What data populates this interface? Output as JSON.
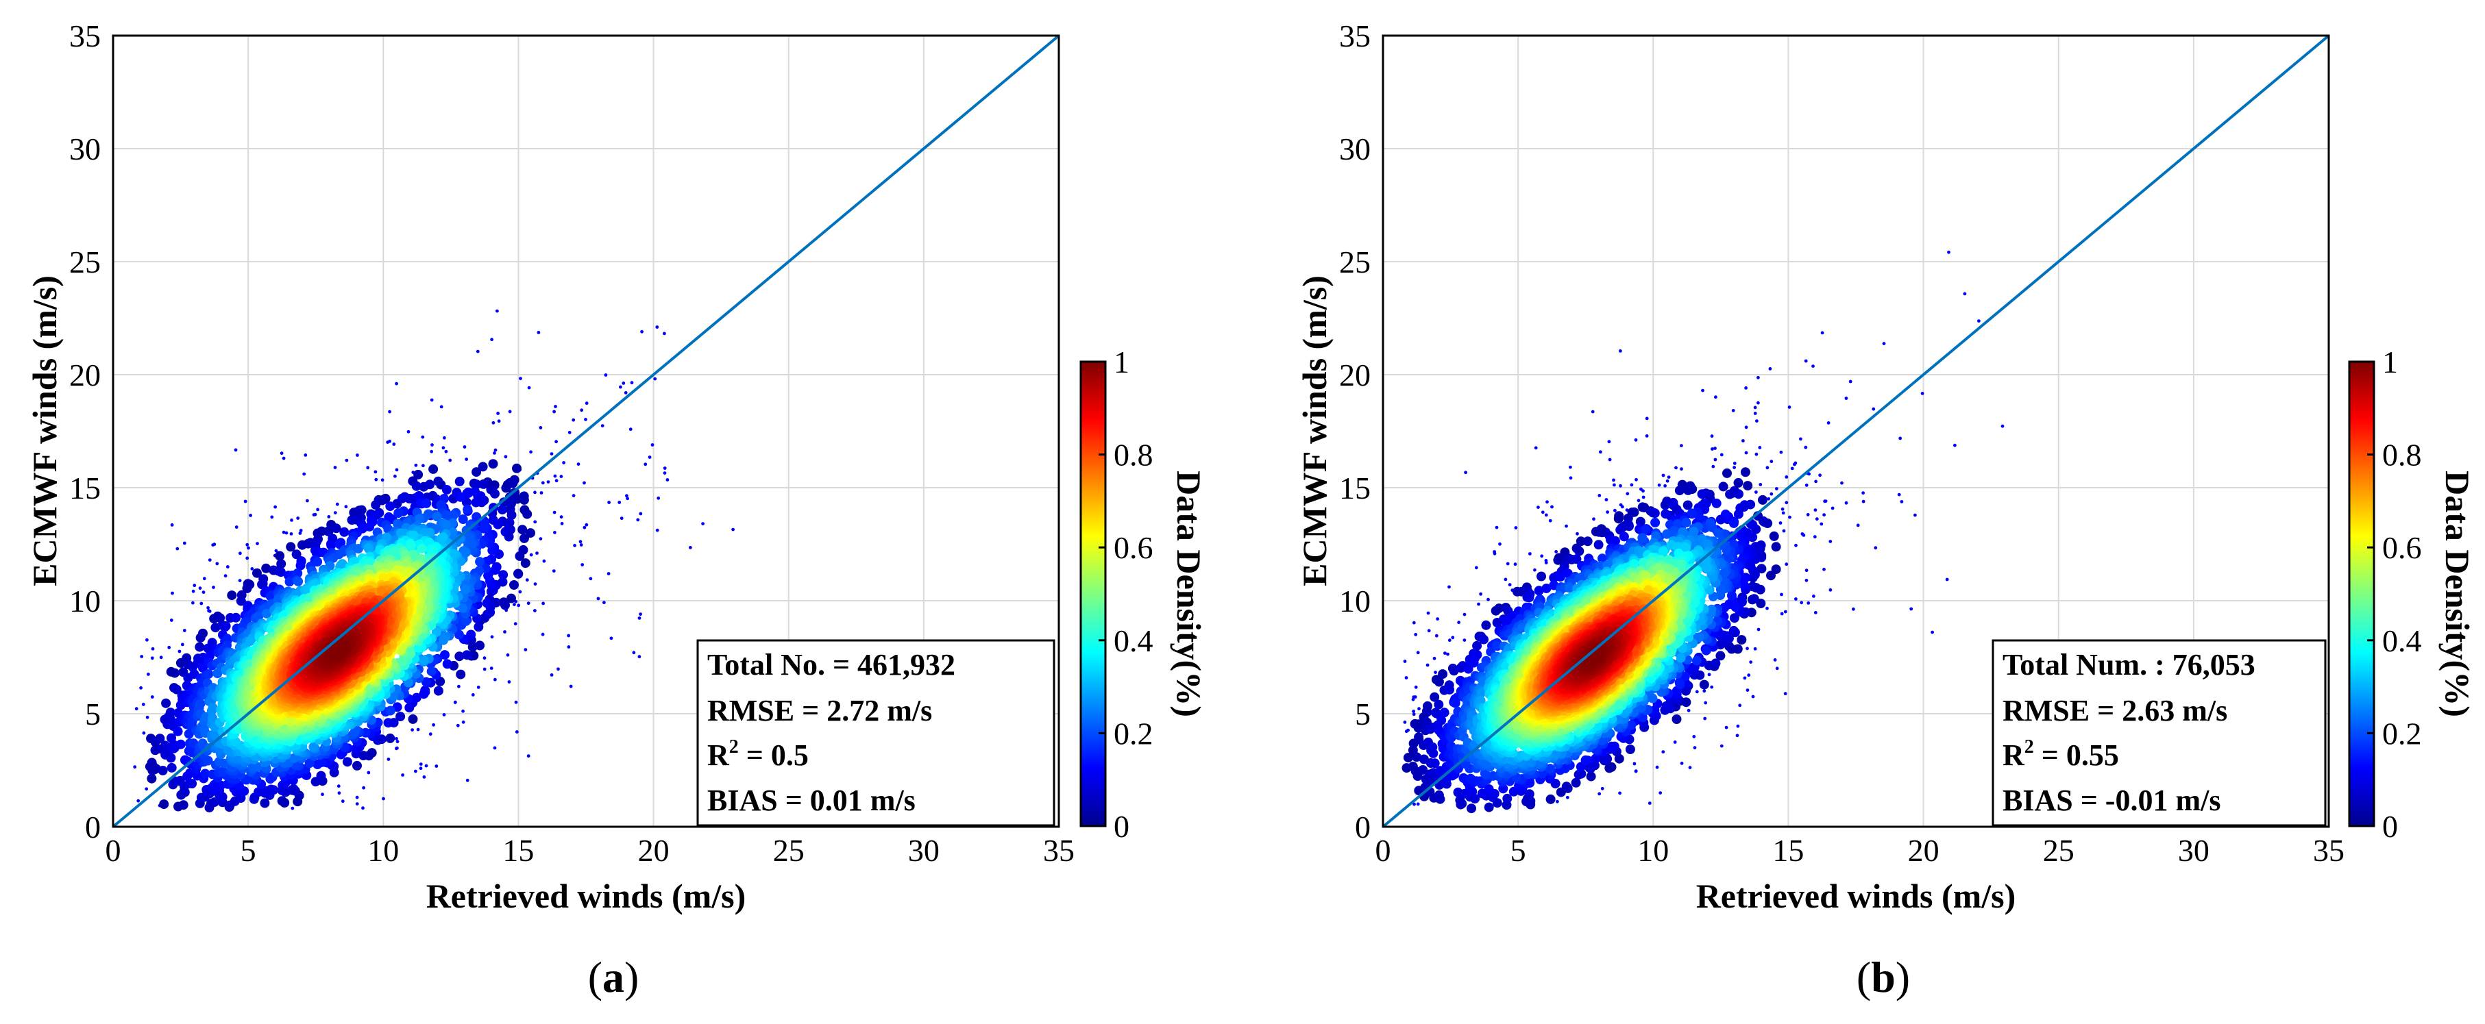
{
  "chart_data": [
    {
      "type": "scatter",
      "panel_label": "a",
      "xlabel": "Retrieved winds (m/s)",
      "ylabel": "ECMWF winds (m/s)",
      "xlim": [
        0,
        35
      ],
      "ylim": [
        0,
        35
      ],
      "xticks": [
        "0",
        "5",
        "10",
        "15",
        "20",
        "25",
        "30",
        "35"
      ],
      "yticks": [
        "0",
        "5",
        "10",
        "15",
        "20",
        "25",
        "30",
        "35"
      ],
      "grid": true,
      "reference_line": {
        "x": [
          0,
          35
        ],
        "y": [
          0,
          35
        ],
        "color": "#0072bd"
      },
      "density_center": {
        "x": 8.3,
        "y": 7.8
      },
      "density_spread": {
        "x": 2.5,
        "y": 2.6,
        "corr": 0.62
      },
      "stats": {
        "line1": "Total No. = 461,932",
        "line2": "RMSE = 2.72 m/s",
        "line3_main": "R",
        "line3_sup": "2",
        "line3_rest": " = 0.5",
        "line4": "BIAS = 0.01 m/s"
      },
      "colorbar": {
        "label": "Data Density(%)",
        "ticks": [
          "0",
          "0.2",
          "0.4",
          "0.6",
          "0.8",
          "1"
        ],
        "range": [
          0,
          1
        ]
      }
    },
    {
      "type": "scatter",
      "panel_label": "b",
      "xlabel": "Retrieved winds (m/s)",
      "ylabel": "ECMWF winds (m/s)",
      "xlim": [
        0,
        35
      ],
      "ylim": [
        0,
        35
      ],
      "xticks": [
        "0",
        "5",
        "10",
        "15",
        "20",
        "25",
        "30",
        "35"
      ],
      "yticks": [
        "0",
        "5",
        "10",
        "15",
        "20",
        "25",
        "30",
        "35"
      ],
      "grid": true,
      "reference_line": {
        "x": [
          0,
          35
        ],
        "y": [
          0,
          35
        ],
        "color": "#0072bd"
      },
      "density_center": {
        "x": 7.8,
        "y": 7.5
      },
      "density_spread": {
        "x": 2.4,
        "y": 2.5,
        "corr": 0.65
      },
      "stats": {
        "line1": "Total Num. : 76,053",
        "line2": "RMSE = 2.63 m/s",
        "line3_main": "R",
        "line3_sup": "2",
        "line3_rest": " = 0.55",
        "line4": "BIAS = -0.01 m/s"
      },
      "colorbar": {
        "label": "Data Density(%)",
        "ticks": [
          "0",
          "0.2",
          "0.4",
          "0.6",
          "0.8",
          "1"
        ],
        "range": [
          0,
          1
        ]
      }
    }
  ]
}
